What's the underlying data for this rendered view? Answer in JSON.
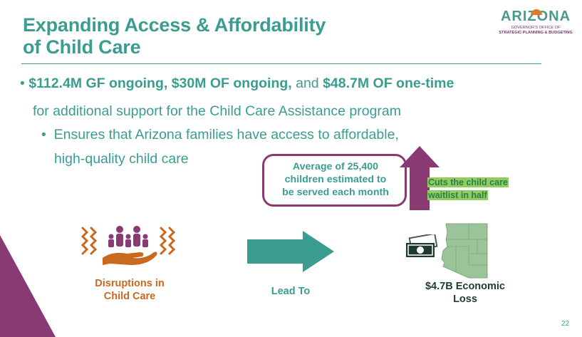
{
  "title": {
    "line1": "Expanding Access & Affordability",
    "line2": "of Child Care"
  },
  "logo": {
    "word": "ARIZONA",
    "sub1": "GOVERNOR'S OFFICE OF",
    "sub2": "STRATEGIC PLANNING & BUDGETING"
  },
  "bullet": {
    "part1": "$112.4M GF ongoing, $30M OF ongoing,",
    "part2": " and ",
    "part3": "$48.7M OF one-time",
    "line2": "for additional support for the Child Care Assistance program"
  },
  "subbullet": {
    "line1": "Ensures that Arizona families have access to affordable,",
    "line2": "high-quality child care"
  },
  "callout": {
    "line1": "Average of 25,400",
    "line2": "children estimated to",
    "line3": "be served each month"
  },
  "cuts": {
    "line1": "Cuts the child care",
    "line2": "waitlist in half"
  },
  "flow": {
    "disruptions_line1": "Disruptions in",
    "disruptions_line2": "Child Care",
    "lead_to": "Lead To",
    "loss_line1": "$4.7B Economic",
    "loss_line2": "Loss"
  },
  "page_number": "22",
  "colors": {
    "teal": "#3a9d8f",
    "plum": "#8a3a73",
    "orange": "#c9681f",
    "green_map": "#9cc49a",
    "highlight": "#8fce5e"
  }
}
